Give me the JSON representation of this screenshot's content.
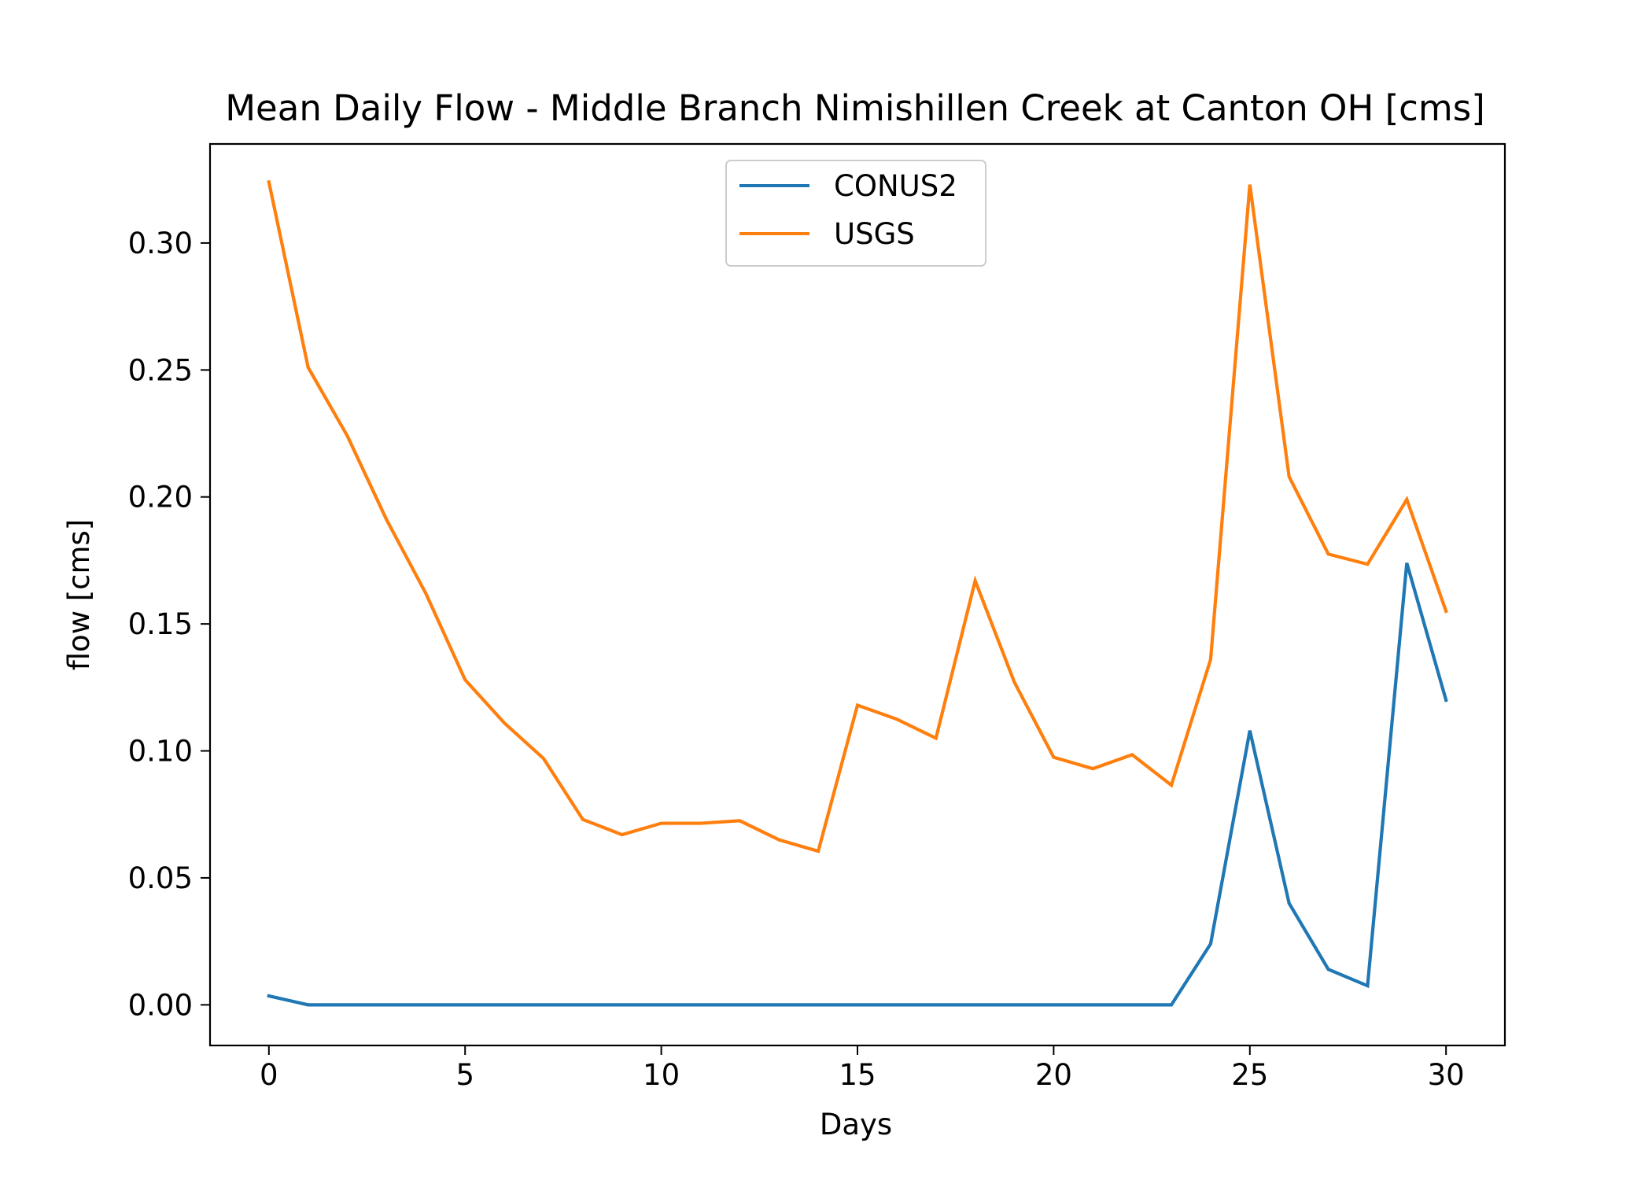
{
  "chart_data": {
    "type": "line",
    "title": "Mean Daily Flow - Middle Branch Nimishillen Creek at Canton OH [cms]",
    "xlabel": "Days",
    "ylabel": "flow [cms]",
    "xlim": [
      -1.5,
      31.5
    ],
    "ylim": [
      -0.016,
      0.339
    ],
    "xticks": [
      0,
      5,
      10,
      15,
      20,
      25,
      30
    ],
    "xtick_labels": [
      "0",
      "5",
      "10",
      "15",
      "20",
      "25",
      "30"
    ],
    "yticks": [
      0.0,
      0.05,
      0.1,
      0.15,
      0.2,
      0.25,
      0.3
    ],
    "ytick_labels": [
      "0.00",
      "0.05",
      "0.10",
      "0.15",
      "0.20",
      "0.25",
      "0.30"
    ],
    "grid": false,
    "legend_position": "upper center",
    "x": [
      0,
      1,
      2,
      3,
      4,
      5,
      6,
      7,
      8,
      9,
      10,
      11,
      12,
      13,
      14,
      15,
      16,
      17,
      18,
      19,
      20,
      21,
      22,
      23,
      24,
      25,
      26,
      27,
      28,
      29,
      30
    ],
    "series": [
      {
        "name": "CONUS2",
        "color": "#1f77b4",
        "values": [
          0.0035,
          0.0,
          0.0,
          0.0,
          0.0,
          0.0,
          0.0,
          0.0,
          0.0,
          0.0,
          0.0,
          0.0,
          0.0,
          0.0,
          0.0,
          0.0,
          0.0,
          0.0,
          0.0,
          0.0,
          0.0,
          0.0,
          0.0,
          0.0,
          0.024,
          0.108,
          0.04,
          0.014,
          0.0075,
          0.174,
          0.12
        ]
      },
      {
        "name": "USGS",
        "color": "#ff7f0e",
        "values": [
          0.324,
          0.251,
          0.224,
          0.191,
          0.162,
          0.128,
          0.111,
          0.097,
          0.073,
          0.067,
          0.0715,
          0.0715,
          0.0725,
          0.065,
          0.0605,
          0.118,
          0.1125,
          0.105,
          0.167,
          0.127,
          0.0975,
          0.093,
          0.0985,
          0.0865,
          0.136,
          0.323,
          0.208,
          0.1775,
          0.1735,
          0.199,
          0.155
        ]
      }
    ]
  }
}
